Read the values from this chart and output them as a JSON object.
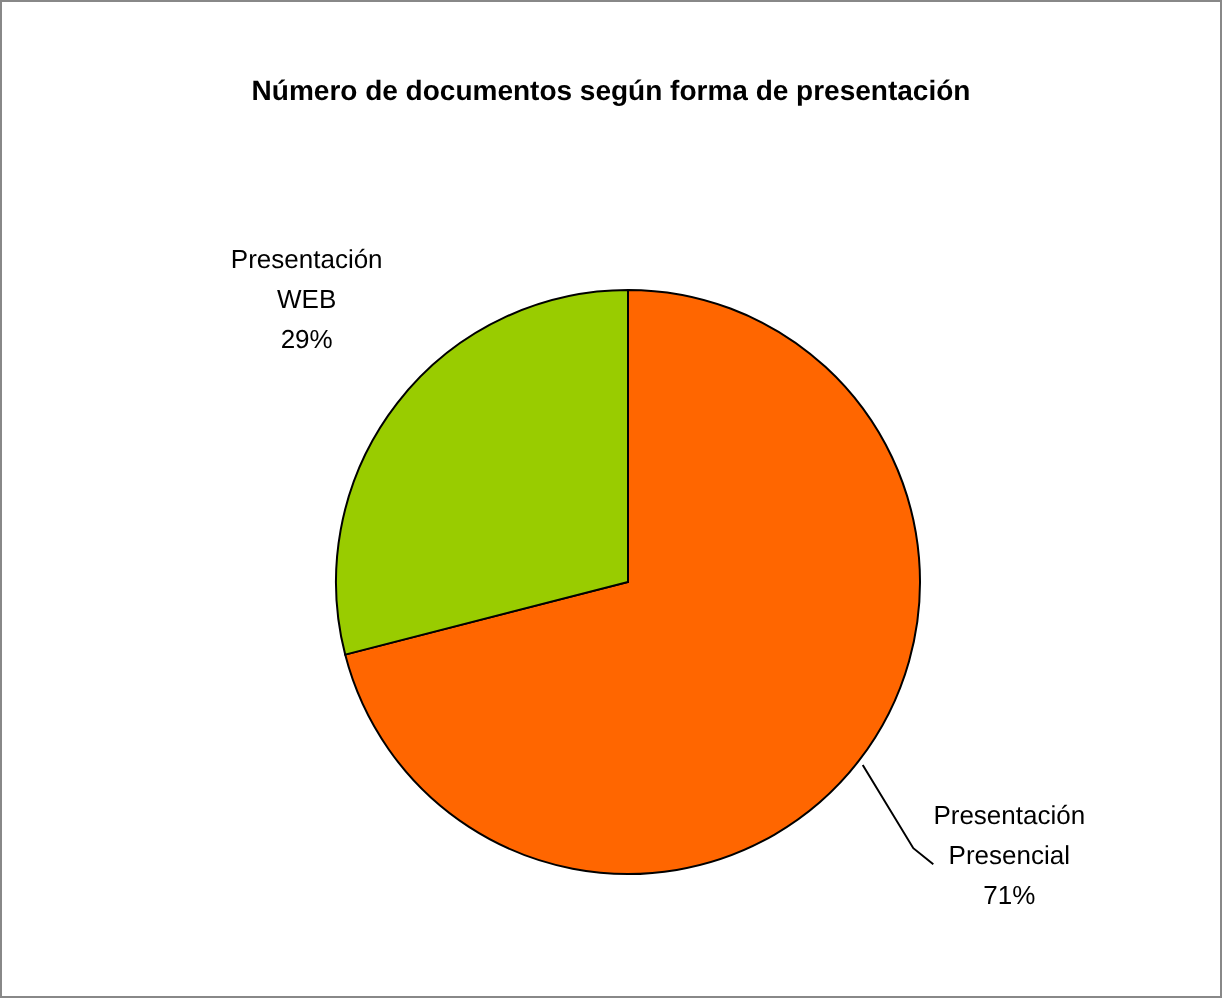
{
  "chart_data": {
    "type": "pie",
    "title": "Número de documentos según forma de presentación",
    "categories": [
      "Presentación Presencial",
      "Presentación WEB"
    ],
    "values": [
      71,
      29
    ],
    "colors": [
      "#ff6600",
      "#99cc00"
    ],
    "value_labels": [
      "71%",
      "29%"
    ]
  }
}
